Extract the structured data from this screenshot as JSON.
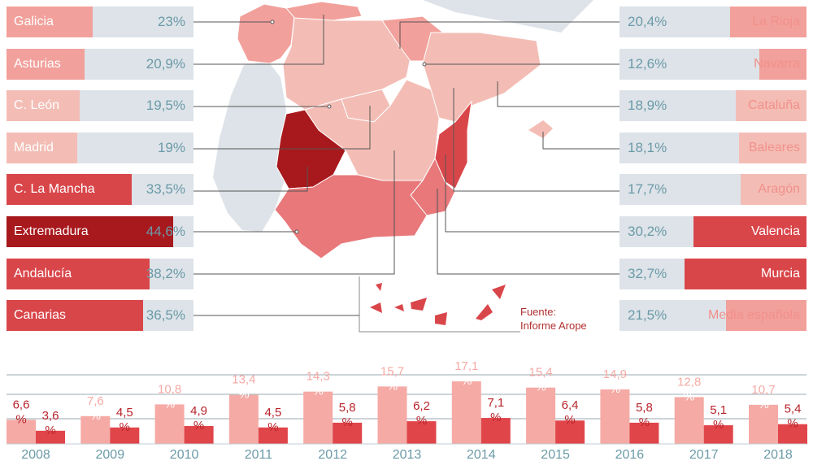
{
  "colors": {
    "bar_bg": "#dde3e8",
    "pct_text": "#6b9aa8",
    "levels": [
      "#f3bdb5",
      "#f2a09b",
      "#e8787a",
      "#d9464a",
      "#a8191d"
    ],
    "bar_light": "#f5aaa5",
    "bar_dark": "#e0454a",
    "label_light": "#f5aaa5",
    "label_dark": "#b8232a",
    "year_text": "#6b9aa8"
  },
  "regions_left": [
    {
      "name": "Galicia",
      "pct": "23%",
      "value": 23,
      "level": 1
    },
    {
      "name": "Asturias",
      "pct": "20,9%",
      "value": 20.9,
      "level": 1
    },
    {
      "name": "C. León",
      "pct": "19,5%",
      "value": 19.5,
      "level": 0
    },
    {
      "name": "Madrid",
      "pct": "19%",
      "value": 19,
      "level": 0
    },
    {
      "name": "C. La Mancha",
      "pct": "33,5%",
      "value": 33.5,
      "level": 3
    },
    {
      "name": "Extremadura",
      "pct": "44,6%",
      "value": 44.6,
      "level": 4
    },
    {
      "name": "Andalucía",
      "pct": "38,2%",
      "value": 38.2,
      "level": 3
    },
    {
      "name": "Canarias",
      "pct": "36,5%",
      "value": 36.5,
      "level": 3
    }
  ],
  "regions_right": [
    {
      "name": "La Rioja",
      "pct": "20,4%",
      "value": 20.4,
      "level": 1
    },
    {
      "name": "Navarra",
      "pct": "12,6%",
      "value": 12.6,
      "level": 1
    },
    {
      "name": "Cataluña",
      "pct": "18,9%",
      "value": 18.9,
      "level": 0
    },
    {
      "name": "Baleares",
      "pct": "18,1%",
      "value": 18.1,
      "level": 0
    },
    {
      "name": "Aragón",
      "pct": "17,7%",
      "value": 17.7,
      "level": 0
    },
    {
      "name": "Valencia",
      "pct": "30,2%",
      "value": 30.2,
      "level": 3
    },
    {
      "name": "Murcia",
      "pct": "32,7%",
      "value": 32.7,
      "level": 3
    },
    {
      "name": "Media española",
      "pct": "21,5%",
      "value": 21.5,
      "level": 1
    }
  ],
  "source": {
    "line1": "Fuente:",
    "line2": "Informe Arope"
  },
  "chart_data": [
    {
      "type": "bar",
      "categories": [
        "Galicia",
        "Asturias",
        "C. León",
        "Madrid",
        "C. La Mancha",
        "Extremadura",
        "Andalucía",
        "Canarias",
        "La Rioja",
        "Navarra",
        "Cataluña",
        "Baleares",
        "Aragón",
        "Valencia",
        "Murcia",
        "Media española"
      ],
      "values": [
        23,
        20.9,
        19.5,
        19,
        33.5,
        44.6,
        38.2,
        36.5,
        20.4,
        12.6,
        18.9,
        18.1,
        17.7,
        30.2,
        32.7,
        21.5
      ],
      "xlim": [
        0,
        50
      ]
    },
    {
      "type": "bar",
      "categories": [
        "2008",
        "2009",
        "2010",
        "2011",
        "2012",
        "2013",
        "2014",
        "2015",
        "2016",
        "2017",
        "2018"
      ],
      "series": [
        {
          "values": [
            6.6,
            7.6,
            10.8,
            13.4,
            14.3,
            15.7,
            17.1,
            15.4,
            14.9,
            12.8,
            10.7
          ],
          "labels": [
            "6,6",
            "7,6",
            "10,8",
            "13,4",
            "14,3",
            "15,7",
            "17,1",
            "15,4",
            "14,9",
            "12,8",
            "10,7"
          ]
        },
        {
          "values": [
            3.6,
            4.5,
            4.9,
            4.5,
            5.8,
            6.2,
            7.1,
            6.4,
            5.8,
            5.1,
            5.4
          ],
          "labels": [
            "3,6",
            "4,5",
            "4,9",
            "4,5",
            "5,8",
            "6,2",
            "7,1",
            "6,4",
            "5,8",
            "5,1",
            "5,4"
          ]
        }
      ],
      "unit": "%",
      "ylim": [
        0,
        20
      ],
      "grid": true
    }
  ]
}
